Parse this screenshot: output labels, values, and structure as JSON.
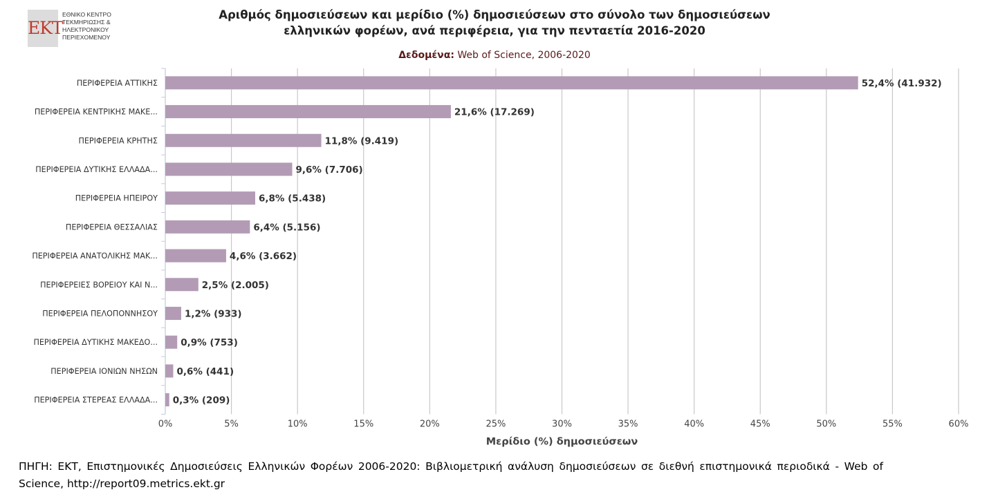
{
  "logo": {
    "mark": "EKT",
    "lines": [
      "ΕΘΝΙΚΟ ΚΕΝΤΡΟ",
      "ΤΕΚΜΗΡΙΩΣΗΣ &",
      "ΗΛΕΚΤΡΟΝΙΚΟΥ",
      "ΠΕΡΙΕΧΟΜΕΝΟΥ"
    ]
  },
  "header": {
    "title_line1": "Αριθμός δημοσιεύσεων και μερίδιο (%) δημοσιεύσεων στο σύνολο των δημοσιεύσεων",
    "title_line2": "ελληνικών φορέων, ανά περιφέρεια, για την πενταετία 2016-2020",
    "data_label": "Δεδομένα:",
    "data_source": "Web of Science, 2006-2020"
  },
  "chart_data": {
    "type": "bar",
    "orientation": "horizontal",
    "categories": [
      "ΠΕΡΙΦΕΡΕΙΑ ΑΤΤΙΚΗΣ",
      "ΠΕΡΙΦΕΡΕΙΑ ΚΕΝΤΡΙΚΗΣ ΜΑΚΕ...",
      "ΠΕΡΙΦΕΡΕΙΑ ΚΡΗΤΗΣ",
      "ΠΕΡΙΦΕΡΕΙΑ ΔΥΤΙΚΗΣ ΕΛΛΑΔΑ...",
      "ΠΕΡΙΦΕΡΕΙΑ ΗΠΕΙΡΟΥ",
      "ΠΕΡΙΦΕΡΕΙΑ ΘΕΣΣΑΛΙΑΣ",
      "ΠΕΡΙΦΕΡΕΙΑ ΑΝΑΤΟΛΙΚΗΣ ΜΑΚ...",
      "ΠΕΡΙΦΕΡΕΙΕΣ ΒΟΡΕΙΟΥ ΚΑΙ Ν...",
      "ΠΕΡΙΦΕΡΕΙΑ ΠΕΛΟΠΟΝΝΗΣΟΥ",
      "ΠΕΡΙΦΕΡΕΙΑ ΔΥΤΙΚΗΣ ΜΑΚΕΔΟ...",
      "ΠΕΡΙΦΕΡΕΙΑ ΙΟΝΙΩΝ ΝΗΣΩΝ",
      "ΠΕΡΙΦΕΡΕΙΑ ΣΤΕΡΕΑΣ ΕΛΛΑΔΑ..."
    ],
    "values": [
      52.4,
      21.6,
      11.8,
      9.6,
      6.8,
      6.4,
      4.6,
      2.5,
      1.2,
      0.9,
      0.6,
      0.3
    ],
    "data_labels": [
      "52,4% (41.932)",
      "21,6% (17.269)",
      "11,8% (9.419)",
      "9,6% (7.706)",
      "6,8% (5.438)",
      "6,4% (5.156)",
      "4,6% (3.662)",
      "2,5% (2.005)",
      "1,2% (933)",
      "0,9% (753)",
      "0,6% (441)",
      "0,3% (209)"
    ],
    "xlim": [
      0,
      60
    ],
    "xticks": [
      0,
      5,
      10,
      15,
      20,
      25,
      30,
      35,
      40,
      45,
      50,
      55,
      60
    ],
    "xtick_labels": [
      "0%",
      "5%",
      "10%",
      "15%",
      "20%",
      "25%",
      "30%",
      "35%",
      "40%",
      "45%",
      "50%",
      "55%",
      "60%"
    ],
    "xlabel": "Μερίδιο (%) δημοσιεύσεων",
    "grid": true,
    "bar_color": "#b39bb5",
    "grid_color": "#c8c8c8"
  },
  "footer": {
    "source_text": "ΠΗΓΗ: ΕΚΤ, Επιστημονικές Δημοσιεύσεις Ελληνικών Φορέων 2006-2020: Βιβλιομετρική ανάλυση δημοσιεύσεων σε διεθνή επιστημονικά περιοδικά - Web of Science, http://report09.metrics.ekt.gr"
  }
}
